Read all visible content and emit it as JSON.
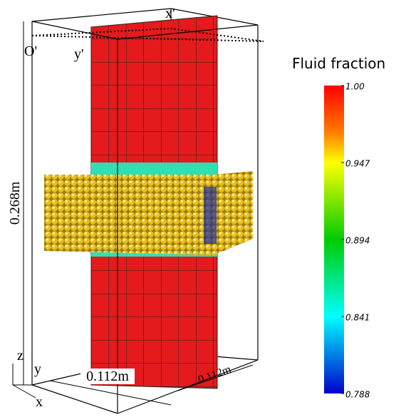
{
  "scene": {
    "labels": {
      "height": "0.268m",
      "width": "0.112m",
      "depth": "0.112m",
      "x_prime": "x'",
      "y_prime": "y'",
      "origin": "O'",
      "axis_z": "z",
      "axis_y": "y",
      "axis_x": "x"
    }
  },
  "colorbar": {
    "title": "Fluid fraction",
    "range": [
      0.788,
      1.0
    ],
    "ticks": [
      {
        "value": 1.0,
        "label": "1.00"
      },
      0.947,
      0.894,
      0.841,
      0.788
    ]
  }
}
